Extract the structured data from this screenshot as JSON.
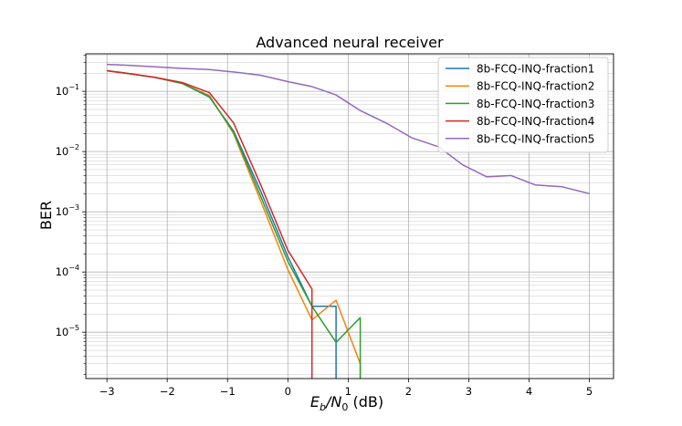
{
  "chart_data": {
    "type": "line",
    "title": "Advanced neural receiver",
    "xlabel_prefix": "E",
    "xlabel_sub1": "b",
    "xlabel_mid": "/N",
    "xlabel_sub2": "0",
    "xlabel_suffix": " (dB)",
    "ylabel": "BER",
    "x_scale": "linear",
    "y_scale": "log",
    "xlim": [
      -3.35,
      5.4
    ],
    "ylim": [
      1.7e-06,
      0.42
    ],
    "grid": "major and minor",
    "legend_position": "top-right",
    "x_ticks": [
      {
        "value": -3,
        "label": "−3"
      },
      {
        "value": -2,
        "label": "−2"
      },
      {
        "value": -1,
        "label": "−1"
      },
      {
        "value": 0,
        "label": "0"
      },
      {
        "value": 1,
        "label": "1"
      },
      {
        "value": 2,
        "label": "2"
      },
      {
        "value": 3,
        "label": "3"
      },
      {
        "value": 4,
        "label": "4"
      },
      {
        "value": 5,
        "label": "5"
      }
    ],
    "y_ticks": [
      {
        "exp": -1,
        "base": "10",
        "sup": "−1"
      },
      {
        "exp": -2,
        "base": "10",
        "sup": "−2"
      },
      {
        "exp": -3,
        "base": "10",
        "sup": "−3"
      },
      {
        "exp": -4,
        "base": "10",
        "sup": "−4"
      },
      {
        "exp": -5,
        "base": "10",
        "sup": "−5"
      }
    ],
    "series": [
      {
        "name": "8b-FCQ-INQ-fraction1",
        "color": "#1f77b4",
        "x": [
          -3.0,
          -2.6,
          -2.2,
          -1.75,
          -1.3,
          -0.9,
          -0.45,
          0.0,
          0.4,
          0.8,
          0.8
        ],
        "y": [
          0.22,
          0.195,
          0.17,
          0.135,
          0.08,
          0.022,
          0.0022,
          0.00018,
          2.7e-05,
          2.7e-05,
          1e-06
        ]
      },
      {
        "name": "8b-FCQ-INQ-fraction2",
        "color": "#ff7f0e",
        "x": [
          -3.0,
          -2.6,
          -2.2,
          -1.75,
          -1.3,
          -0.9,
          -0.45,
          0.0,
          0.4,
          0.8,
          1.2,
          1.2
        ],
        "y": [
          0.22,
          0.195,
          0.17,
          0.135,
          0.085,
          0.02,
          0.0015,
          0.00011,
          1.6e-05,
          3.4e-05,
          3e-06,
          1e-06
        ]
      },
      {
        "name": "8b-FCQ-INQ-fraction3",
        "color": "#2ca02c",
        "x": [
          -3.0,
          -2.6,
          -2.2,
          -1.75,
          -1.3,
          -0.9,
          -0.45,
          0.0,
          0.4,
          0.8,
          1.2,
          1.2
        ],
        "y": [
          0.22,
          0.195,
          0.17,
          0.135,
          0.082,
          0.021,
          0.0018,
          0.00015,
          2.7e-05,
          6.8e-06,
          1.75e-05,
          1e-06
        ]
      },
      {
        "name": "8b-FCQ-INQ-fraction4",
        "color": "#d62728",
        "x": [
          -3.0,
          -2.6,
          -2.2,
          -1.75,
          -1.3,
          -0.9,
          -0.45,
          0.0,
          0.4,
          0.4
        ],
        "y": [
          0.22,
          0.195,
          0.17,
          0.14,
          0.095,
          0.03,
          0.0028,
          0.00023,
          5.2e-05,
          1e-06
        ]
      },
      {
        "name": "8b-FCQ-INQ-fraction5",
        "color": "#9467bd",
        "x": [
          -3.0,
          -2.6,
          -2.2,
          -1.75,
          -1.3,
          -0.9,
          -0.45,
          0.0,
          0.4,
          0.8,
          1.2,
          1.65,
          2.05,
          2.5,
          2.9,
          3.3,
          3.7,
          4.1,
          4.55,
          5.0
        ],
        "y": [
          0.28,
          0.27,
          0.255,
          0.24,
          0.23,
          0.21,
          0.185,
          0.145,
          0.12,
          0.087,
          0.048,
          0.029,
          0.017,
          0.012,
          0.006,
          0.0038,
          0.004,
          0.0028,
          0.0026,
          0.002
        ]
      }
    ]
  }
}
